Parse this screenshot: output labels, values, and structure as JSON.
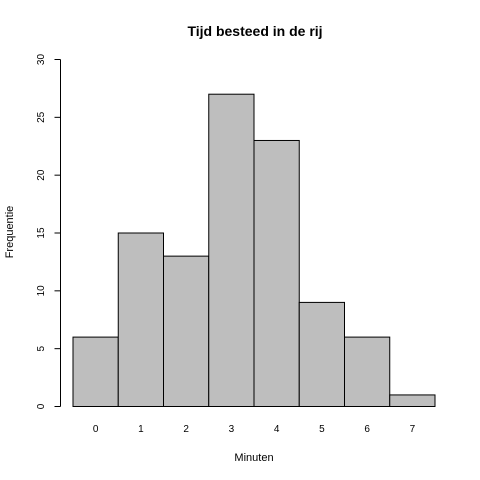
{
  "chart_data": {
    "type": "bar",
    "title": "Tijd besteed in de rij",
    "xlabel": "Minuten",
    "ylabel": "Frequentie",
    "categories": [
      "0",
      "1",
      "2",
      "3",
      "4",
      "5",
      "6",
      "7"
    ],
    "values": [
      6,
      15,
      13,
      27,
      23,
      9,
      6,
      1
    ],
    "ylim": [
      0,
      30
    ],
    "yticks": [
      0,
      5,
      10,
      15,
      20,
      25,
      30
    ],
    "grid": false,
    "colors": {
      "bar_fill": "#bebebe",
      "bar_stroke": "#000000"
    }
  }
}
